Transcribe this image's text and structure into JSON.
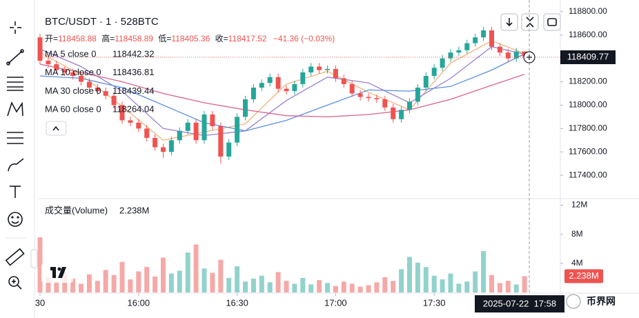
{
  "chart_data": {
    "type": "candlestick",
    "title": "BTC/USDT · 1 · 528BTC",
    "ohlc_labels": [
      "开=",
      "高=",
      "低=",
      "收="
    ],
    "change": "−41.36 (−0.03%)",
    "open": [
      118580,
      118380,
      118350,
      118300,
      118280,
      118250,
      118200,
      118150,
      118120,
      118080,
      118000,
      117870,
      117850,
      117800,
      117720,
      117640,
      117600,
      117700,
      117780,
      117850,
      117700,
      117920,
      117820,
      117560,
      117680,
      117900,
      118050,
      118150,
      118190,
      118240,
      118140,
      118120,
      118180,
      118280,
      118330,
      118300,
      118310,
      118230,
      118180,
      118100,
      118070,
      118060,
      118050,
      117980,
      117880,
      117960,
      118030,
      118150,
      118250,
      118320,
      118400,
      118450,
      118470,
      118530,
      118580,
      118640,
      118500,
      118450,
      118400,
      118458.88
    ],
    "high": [
      118610,
      118410,
      118380,
      118330,
      118310,
      118280,
      118230,
      118180,
      118150,
      118110,
      118030,
      117900,
      117880,
      117830,
      117750,
      117670,
      117730,
      117810,
      117880,
      117880,
      117950,
      117950,
      117850,
      117710,
      117930,
      118080,
      118180,
      118220,
      118270,
      118270,
      118170,
      118210,
      118310,
      118360,
      118360,
      118340,
      118340,
      118260,
      118210,
      118130,
      118100,
      118090,
      118080,
      118010,
      117990,
      118060,
      118180,
      118280,
      118350,
      118430,
      118480,
      118500,
      118560,
      118610,
      118670,
      118670,
      118530,
      118480,
      118490,
      118458.89
    ],
    "low": [
      118350,
      118320,
      118270,
      118250,
      118220,
      118170,
      118120,
      118090,
      118050,
      117970,
      117840,
      117820,
      117770,
      117690,
      117610,
      117550,
      117570,
      117670,
      117750,
      117670,
      117670,
      117790,
      117500,
      117530,
      117650,
      117870,
      118020,
      118120,
      118160,
      118110,
      118090,
      118090,
      118150,
      118250,
      118270,
      118270,
      118200,
      118150,
      118070,
      118040,
      118030,
      118020,
      117950,
      117850,
      117850,
      117930,
      118000,
      118120,
      118220,
      118290,
      118370,
      118420,
      118440,
      118500,
      118550,
      118470,
      118420,
      118370,
      118370,
      118405.36
    ],
    "close": [
      118380,
      118350,
      118300,
      118280,
      118250,
      118200,
      118150,
      118120,
      118080,
      118000,
      117870,
      117850,
      117800,
      117720,
      117640,
      117600,
      117700,
      117780,
      117850,
      117700,
      117920,
      117820,
      117560,
      117680,
      117900,
      118050,
      118150,
      118190,
      118240,
      118140,
      118120,
      118180,
      118280,
      118330,
      118300,
      118310,
      118230,
      118180,
      118100,
      118070,
      118060,
      118050,
      117980,
      117880,
      117960,
      118030,
      118150,
      118250,
      118320,
      118400,
      118450,
      118470,
      118530,
      118580,
      118640,
      118500,
      118450,
      118400,
      118458.88,
      118417.52
    ],
    "ylim": [
      117200,
      118870
    ],
    "yticks": [
      {
        "value": 118800,
        "label": "118800.00"
      },
      {
        "value": 118600,
        "label": "118600.00"
      },
      {
        "value": 118200,
        "label": "118200.00"
      },
      {
        "value": 118000,
        "label": "118000.00"
      },
      {
        "value": 117800,
        "label": "117800.00"
      },
      {
        "value": 117600,
        "label": "117600.00"
      },
      {
        "value": 117400,
        "label": "117400.00"
      }
    ],
    "xticks": [
      {
        "value": 0,
        "label": "30"
      },
      {
        "value": 12,
        "label": "16:00"
      },
      {
        "value": 24,
        "label": "16:30"
      },
      {
        "value": 36,
        "label": "17:00"
      },
      {
        "value": 48,
        "label": "17:30"
      }
    ],
    "ma_x": [
      0,
      5,
      10,
      15,
      20,
      25,
      30,
      35,
      40,
      45,
      50,
      55,
      59
    ],
    "ma": [
      {
        "name": "MA 5 close 0",
        "color": "#f2b27c",
        "values": [
          118450,
          118260,
          117990,
          117700,
          117770,
          117840,
          118180,
          118290,
          118110,
          117960,
          118360,
          118550,
          118442.32
        ]
      },
      {
        "name": "MA 10 close 0",
        "color": "#9a7fd1",
        "values": [
          118480,
          118330,
          118120,
          117800,
          117740,
          117780,
          118040,
          118240,
          118190,
          118020,
          118230,
          118500,
          118436.81
        ]
      },
      {
        "name": "MA 30 close 0",
        "color": "#5b8fe0",
        "values": [
          118250,
          118230,
          118150,
          118000,
          117850,
          117780,
          117870,
          118000,
          118130,
          118120,
          118160,
          118300,
          118439.44
        ]
      },
      {
        "name": "MA 60 close 0",
        "color": "#d9628c",
        "values": [
          118350,
          118280,
          118200,
          118100,
          118020,
          117960,
          117910,
          117900,
          117920,
          117960,
          118050,
          118170,
          118264.04
        ]
      }
    ],
    "volume": {
      "name": "成交量(Volume)",
      "values": [
        7.6,
        2.1,
        1.5,
        2.8,
        1.9,
        1.2,
        2.5,
        1.6,
        3.1,
        2.4,
        4.2,
        1.8,
        2.9,
        3.5,
        2.2,
        4.8,
        2.6,
        3.0,
        5.5,
        6.6,
        3.3,
        2.7,
        4.5,
        2.0,
        3.6,
        1.5,
        1.9,
        2.3,
        1.4,
        2.8,
        1.6,
        1.2,
        2.0,
        1.1,
        1.7,
        1.3,
        0.9,
        1.5,
        1.2,
        0.8,
        1.0,
        1.4,
        2.1,
        1.6,
        3.2,
        4.9,
        4.1,
        3.5,
        2.3,
        1.8,
        2.6,
        1.2,
        1.5,
        2.9,
        5.7,
        2.4,
        1.3,
        1.6,
        1.1,
        2.238
      ],
      "value_labels": [
        null,
        null,
        null,
        null,
        null,
        null,
        null,
        null,
        null,
        null,
        null,
        null,
        null,
        null,
        null,
        null,
        null,
        null,
        null,
        null,
        null,
        null,
        null,
        null,
        null,
        null,
        null,
        null,
        null,
        null,
        null,
        null,
        null,
        null,
        null,
        null,
        null,
        null,
        null,
        null,
        null,
        null,
        null,
        null,
        null,
        null,
        null,
        null,
        null,
        null,
        null,
        null,
        null,
        null,
        null,
        null,
        null,
        null,
        null,
        "2.238M"
      ],
      "ylim": [
        0,
        13
      ],
      "yticks": [
        {
          "value": 12,
          "label": "12M"
        },
        {
          "value": 8,
          "label": "8M"
        },
        {
          "value": 4,
          "label": "4M"
        }
      ]
    },
    "crosshair": {
      "price": 118409.77,
      "time": "2025-07-22  17:58"
    },
    "watermark": "币界网"
  }
}
